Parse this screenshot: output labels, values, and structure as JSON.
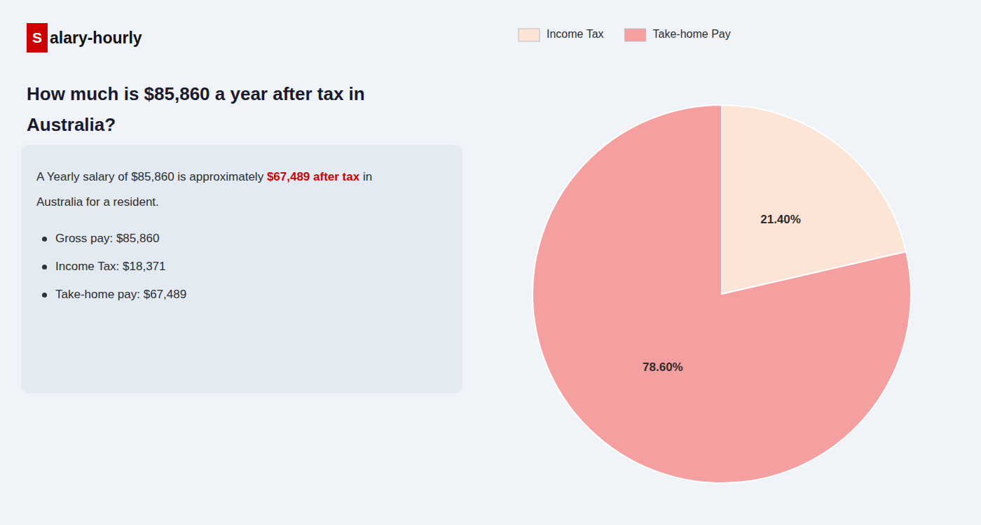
{
  "chart_data": {
    "type": "pie",
    "title": [
      "How much is $85,860 a year after tax in",
      "Australia?"
    ],
    "annotations": [
      "S",
      "alary-hourly",
      "A Yearly salary of $85,860 is approximately ",
      "$67,489 after tax",
      " in",
      "Australia for a resident.",
      "Gross pay: $85,860",
      "Income Tax: $18,371",
      "Take-home pay: $67,489"
    ],
    "categories": [
      "Income Tax",
      "Take-home Pay"
    ],
    "values": [
      21.4,
      78.6
    ],
    "value_labels": [
      "21.40%",
      "78.60%"
    ],
    "colors": [
      "#fce4d6",
      "#f4a0a0"
    ],
    "data_labels": true,
    "legend": "top"
  }
}
